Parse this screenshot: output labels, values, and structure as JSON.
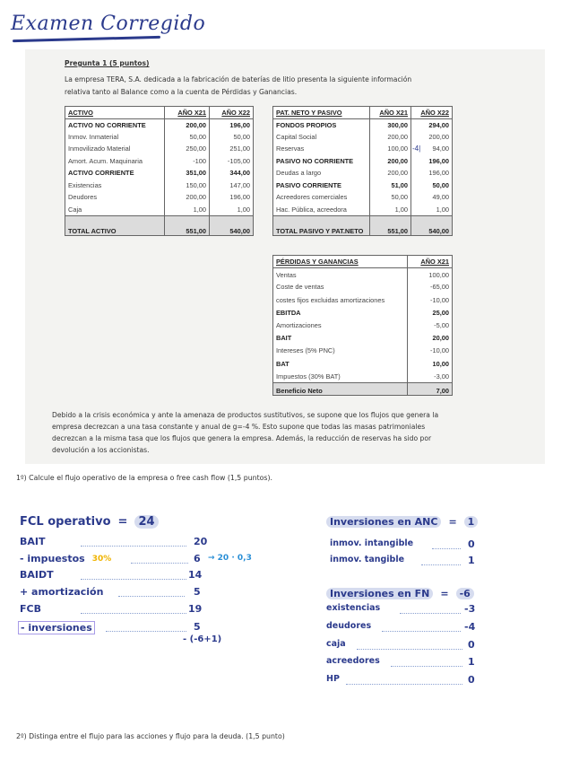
{
  "title": "Examen Corregido",
  "question1": {
    "heading": "Pregunta 1 (5 puntos)",
    "intro": "La empresa TERA, S.A. dedicada a la fabricación de baterías de litio presenta la siguiente información relativa tanto al Balance como a la cuenta de Pérdidas y Ganancias."
  },
  "activo": {
    "headers": [
      "ACTIVO",
      "AÑO X21",
      "AÑO X22"
    ],
    "rows": [
      [
        "ACTIVO NO CORRIENTE",
        "200,00",
        "196,00",
        "b"
      ],
      [
        "Inmov. Inmaterial",
        "50,00",
        "50,00",
        ""
      ],
      [
        "Inmovilizado Material",
        "250,00",
        "251,00",
        ""
      ],
      [
        "Amort. Acum. Maquinaria",
        "-100",
        "-105,00",
        ""
      ],
      [
        "ACTIVO CORRIENTE",
        "351,00",
        "344,00",
        "b"
      ],
      [
        "Existencias",
        "150,00",
        "147,00",
        ""
      ],
      [
        "Deudores",
        "200,00",
        "196,00",
        ""
      ],
      [
        "Caja",
        "1,00",
        "1,00",
        ""
      ],
      [
        "TOTAL ACTIVO",
        "551,00",
        "540,00",
        "t"
      ]
    ]
  },
  "pasivo": {
    "headers": [
      "PAT. NETO Y PASIVO",
      "AÑO X21",
      "AÑO X22"
    ],
    "rows": [
      [
        "FONDOS PROPIOS",
        "300,00",
        "294,00",
        "b"
      ],
      [
        "Capital Social",
        "200,00",
        "200,00",
        ""
      ],
      [
        "Reservas",
        "100,00",
        "94,00",
        ""
      ],
      [
        "PASIVO NO CORRIENTE",
        "200,00",
        "196,00",
        "b"
      ],
      [
        "Deudas a largo",
        "200,00",
        "196,00",
        ""
      ],
      [
        "PASIVO CORRIENTE",
        "51,00",
        "50,00",
        "b"
      ],
      [
        "Acreedores comerciales",
        "50,00",
        "49,00",
        ""
      ],
      [
        "Hac. Pública, acreedora",
        "1,00",
        "1,00",
        ""
      ],
      [
        "TOTAL PASIVO Y PAT.NETO",
        "551,00",
        "540,00",
        "t"
      ]
    ],
    "annotation": "-4|"
  },
  "pyg": {
    "headers": [
      "PÉRDIDAS Y GANANCIAS",
      "AÑO X21"
    ],
    "rows": [
      [
        "Ventas",
        "100,00",
        ""
      ],
      [
        "Coste de ventas",
        "-65,00",
        ""
      ],
      [
        "costes fijos excluidas amortizaciones",
        "-10,00",
        ""
      ],
      [
        "EBITDA",
        "25,00",
        "b"
      ],
      [
        "Amortizaciones",
        "-5,00",
        ""
      ],
      [
        "BAIT",
        "20,00",
        "b"
      ],
      [
        "Intereses (5% PNC)",
        "-10,00",
        ""
      ],
      [
        "BAT",
        "10,00",
        "b"
      ],
      [
        "Impuestos (30% BAT)",
        "-3,00",
        ""
      ],
      [
        "Beneficio Neto",
        "7,00",
        "t"
      ]
    ]
  },
  "context": "Debido a la crisis económica y ante la amenaza de productos sustitutivos, se supone que los flujos que genera la empresa decrezcan a una tasa constante y anual de g=-4 %. Esto supone que todas las masas patrimoniales decrezcan a la misma tasa que los flujos que genera la empresa. Además, la reducción de reservas ha sido por devolución a los accionistas.",
  "q1": "1º) Calcule el flujo operativo de la empresa o free cash flow (1,5 puntos).",
  "q2": "2º) Distinga entre el flujo para las acciones y flujo para la deuda. (1,5 punto)",
  "fcl": {
    "label": "FCL operativo",
    "eq": "=",
    "value": "24",
    "tax_note": "30%",
    "tax_calc": "→ 20 · 0,3",
    "extra": "- (-6+1)",
    "rows": [
      [
        "BAIT",
        "20"
      ],
      [
        "- impuestos",
        "6"
      ],
      [
        "BAIDT",
        "14"
      ],
      [
        "+ amortización",
        "5"
      ],
      [
        "FCB",
        "19"
      ],
      [
        "- inversiones",
        "5"
      ]
    ]
  },
  "anc": {
    "label": "Inversiones en ANC",
    "eq": "=",
    "value": "1",
    "rows": [
      [
        "inmov. intangible",
        "0"
      ],
      [
        "inmov. tangible",
        "1"
      ]
    ]
  },
  "fn": {
    "label": "Inversiones en FN",
    "eq": "=",
    "value": "-6",
    "rows": [
      [
        "existencias",
        "-3"
      ],
      [
        "deudores",
        "-4"
      ],
      [
        "caja",
        "0"
      ],
      [
        "acreedores",
        "1"
      ],
      [
        "HP",
        "0"
      ]
    ]
  },
  "colors": {
    "ink": "#2b3a8c",
    "highlight": "#d6dcef",
    "tax_note": "#f0b400",
    "calc": "#2a8fd6",
    "box": "#a89be8"
  }
}
